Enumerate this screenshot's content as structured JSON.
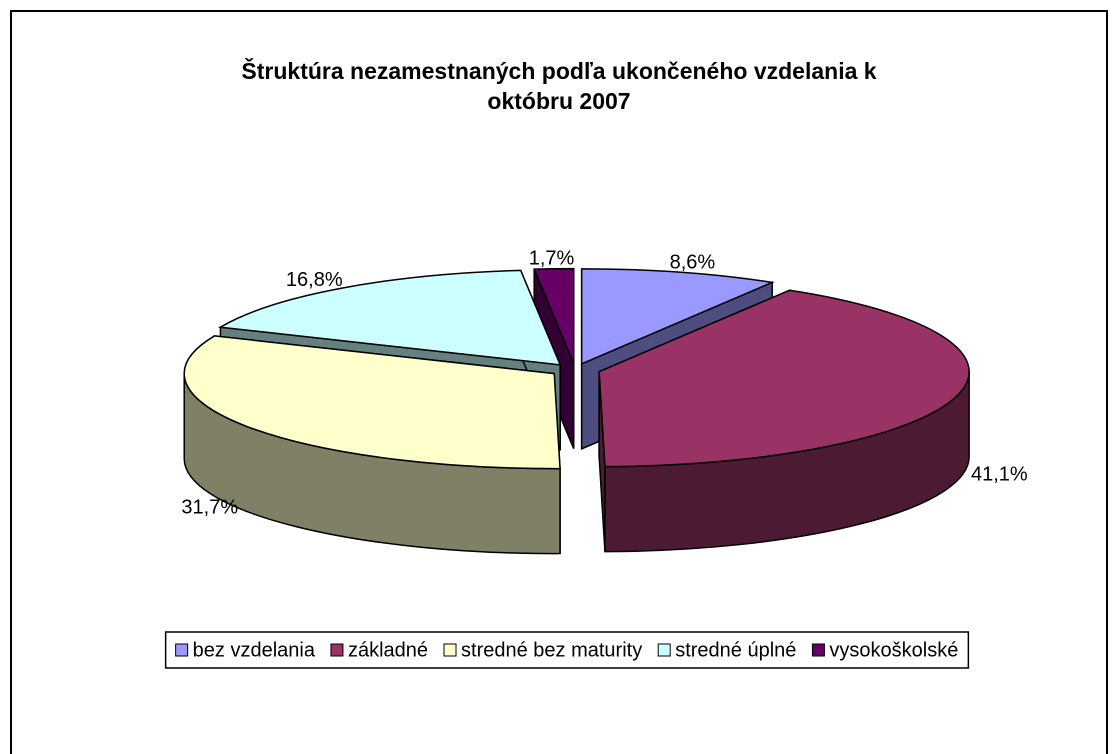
{
  "chart_data": {
    "type": "pie3d",
    "title": "Štruktúra nezamestnaných podľa ukončeného vzdelania k októbru 2007",
    "categories": [
      "bez vzdelania",
      "základné",
      "stredné bez maturity",
      "stredné úplné",
      "vysokoškolské"
    ],
    "values": [
      8.6,
      41.1,
      31.7,
      16.8,
      1.7
    ],
    "value_labels": [
      "8,6%",
      "41,1%",
      "31,7%",
      "16,8%",
      "1,7%"
    ],
    "colors": [
      "#9999ff",
      "#993366",
      "#ffffcc",
      "#ccffff",
      "#660066"
    ],
    "legend": "bottom"
  }
}
